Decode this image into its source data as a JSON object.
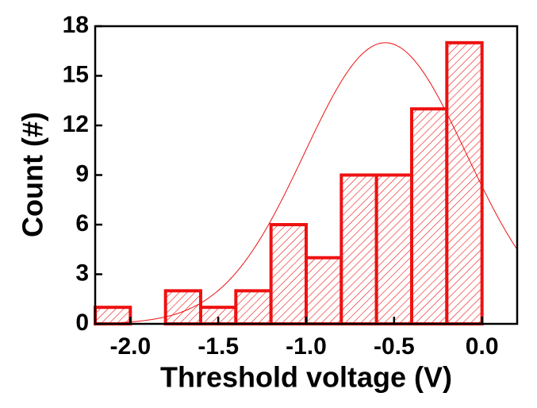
{
  "chart_data": {
    "type": "histogram",
    "xlabel": "Threshold voltage (V)",
    "ylabel": "Count (#)",
    "bins": [
      -2.2,
      -2.0,
      -1.8,
      -1.6,
      -1.4,
      -1.2,
      -1.0,
      -0.8,
      -0.6,
      -0.4,
      -0.2,
      0.0
    ],
    "values": [
      1,
      0,
      2,
      1,
      2,
      6,
      4,
      9,
      9,
      13,
      17
    ],
    "color": "#ee1111",
    "fit": {
      "mean": -0.55,
      "sigma": 0.46,
      "peak": 17
    },
    "xlim": [
      -2.2,
      0.2
    ],
    "ylim": [
      0,
      18
    ],
    "xticks": [
      {
        "value": -2,
        "label": "-2.0"
      },
      {
        "value": -1.5,
        "label": "-1.5"
      },
      {
        "value": -1,
        "label": "-1.0"
      },
      {
        "value": -0.5,
        "label": "-0.5"
      },
      {
        "value": 0,
        "label": "0.0"
      }
    ],
    "yticks": [
      0,
      3,
      6,
      9,
      12,
      15,
      18
    ]
  }
}
